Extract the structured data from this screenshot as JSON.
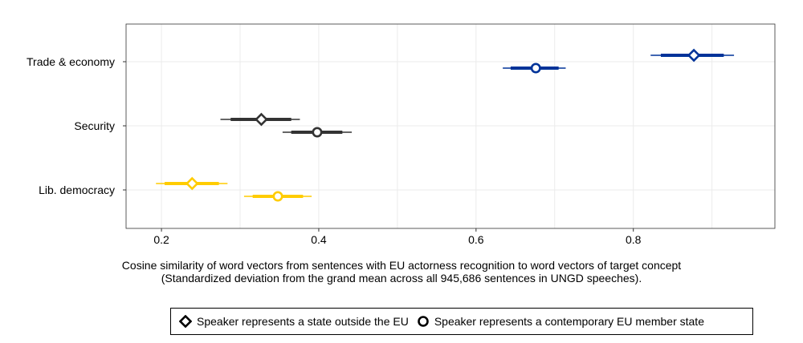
{
  "chart_data": {
    "type": "dot-interval",
    "title": "",
    "xlabel_line1": "Cosine similarity of word vectors from sentences with EU actorness recognition to word vectors of target concept",
    "xlabel_line2": "(Standardized deviation from the grand mean across all 945,686 sentences in UNGD speeches).",
    "ylabel": "",
    "xlim": [
      0.155,
      0.98
    ],
    "x_ticks": [
      0.2,
      0.4,
      0.6,
      0.8
    ],
    "x_tick_labels": [
      "0.2",
      "0.4",
      "0.6",
      "0.8"
    ],
    "categories": [
      "Trade & economy",
      "Security",
      "Lib. democracy"
    ],
    "category_colors": {
      "Trade & economy": "#003399",
      "Security": "#333333",
      "Lib. democracy": "#FFCC00"
    },
    "series": [
      {
        "name": "Speaker represents a state outside the EU",
        "marker": "diamond",
        "points": [
          {
            "category": "Trade & economy",
            "estimate": 0.877,
            "ci_inner": [
              0.835,
              0.915
            ],
            "ci_outer": [
              0.822,
              0.928
            ]
          },
          {
            "category": "Security",
            "estimate": 0.327,
            "ci_inner": [
              0.288,
              0.365
            ],
            "ci_outer": [
              0.275,
              0.376
            ]
          },
          {
            "category": "Lib. democracy",
            "estimate": 0.239,
            "ci_inner": [
              0.204,
              0.273
            ],
            "ci_outer": [
              0.193,
              0.284
            ]
          }
        ]
      },
      {
        "name": "Speaker represents a contemporary EU member state",
        "marker": "circle",
        "points": [
          {
            "category": "Trade & economy",
            "estimate": 0.676,
            "ci_inner": [
              0.644,
              0.705
            ],
            "ci_outer": [
              0.634,
              0.714
            ]
          },
          {
            "category": "Security",
            "estimate": 0.398,
            "ci_inner": [
              0.365,
              0.43
            ],
            "ci_outer": [
              0.354,
              0.442
            ]
          },
          {
            "category": "Lib. democracy",
            "estimate": 0.348,
            "ci_inner": [
              0.316,
              0.38
            ],
            "ci_outer": [
              0.305,
              0.391
            ]
          }
        ]
      }
    ],
    "grid": true,
    "legend_position": "bottom"
  }
}
